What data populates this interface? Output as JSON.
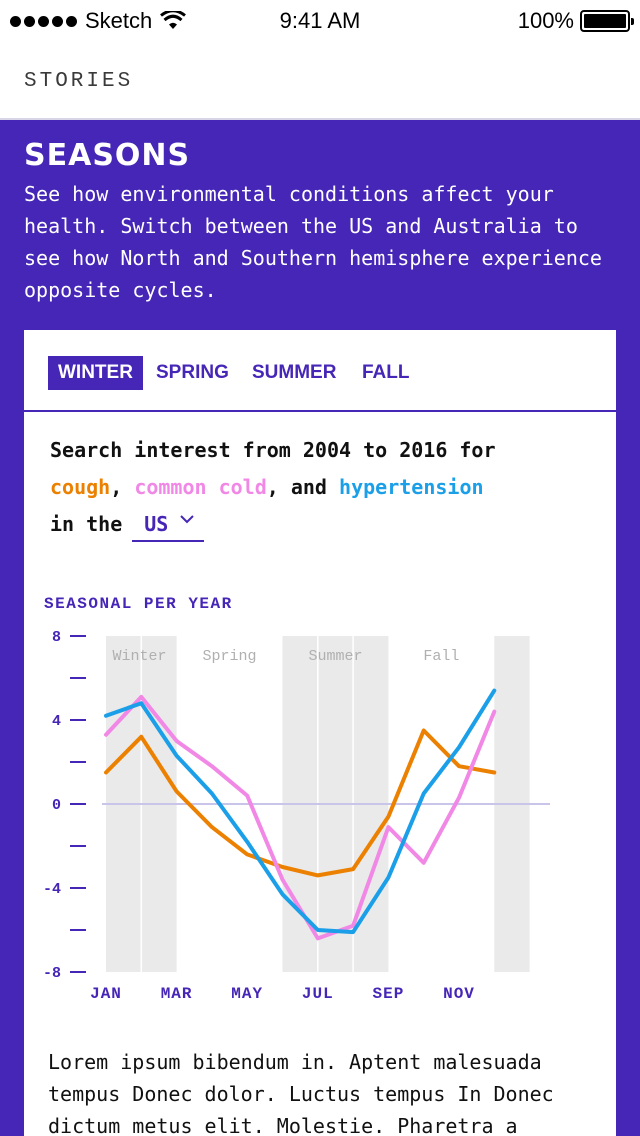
{
  "status_bar": {
    "carrier": "Sketch",
    "time": "9:41 AM",
    "battery": "100%",
    "battery_level": 1.0
  },
  "header": {
    "title": "STORIES"
  },
  "intro": {
    "title": "SEASONS",
    "text": "See how environmental conditions affect your health. Switch between the US and Australia to see how North and Southern hemisphere experience opposite cycles."
  },
  "tabs": [
    {
      "label": "WINTER",
      "active": true
    },
    {
      "label": "SPRING",
      "active": false
    },
    {
      "label": "SUMMER",
      "active": false
    },
    {
      "label": "FALL",
      "active": false
    }
  ],
  "query": {
    "prefix": "Search interest from 2004 to 2016 for",
    "term1": "cough",
    "sep1": ",",
    "term2": "common cold",
    "sep2": ", and",
    "term3": "hypertension",
    "in_the": "in the",
    "country": "US"
  },
  "colors": {
    "brand_purple": "#4626b6",
    "cough": "#ec8000",
    "common_cold": "#f188e6",
    "hypertension": "#1a9fe8",
    "season_band": "#eaeaea"
  },
  "chart_data": {
    "type": "line",
    "title": "SEASONAL PER YEAR",
    "ylim": [
      -8,
      8
    ],
    "y_ticks": [
      8,
      6,
      4,
      2,
      0,
      -2,
      -4,
      -6,
      -8
    ],
    "y_tick_labels": [
      "8",
      "",
      "4",
      "",
      "0",
      "",
      "-4",
      "",
      "-8"
    ],
    "x_labels": [
      "JAN",
      "MAR",
      "MAY",
      "JUL",
      "SEP",
      "NOV"
    ],
    "x_label_months": [
      0,
      2,
      4,
      6,
      8,
      10
    ],
    "season_labels": [
      "Winter",
      "Spring",
      "Summer",
      "Fall"
    ],
    "season_bands": [
      [
        0,
        2
      ],
      [
        5,
        8
      ],
      [
        11,
        12
      ]
    ],
    "x": [
      0,
      1,
      2,
      3,
      4,
      5,
      6,
      7,
      8,
      9,
      10,
      11,
      12
    ],
    "series": [
      {
        "name": "cough",
        "color": "#ec8000",
        "values": [
          1.5,
          3.2,
          0.6,
          -1.1,
          -2.4,
          -3.0,
          -3.4,
          -3.1,
          -0.6,
          3.5,
          1.8,
          1.5,
          null
        ]
      },
      {
        "name": "common cold",
        "color": "#f188e6",
        "values": [
          3.3,
          5.1,
          3.0,
          1.8,
          0.4,
          -3.6,
          -6.4,
          -5.8,
          -1.1,
          -2.8,
          0.3,
          4.4,
          null
        ]
      },
      {
        "name": "hypertension",
        "color": "#1a9fe8",
        "values": [
          4.2,
          4.8,
          2.3,
          0.5,
          -1.8,
          -4.3,
          -6.0,
          -6.1,
          -3.5,
          0.5,
          2.7,
          5.4,
          null
        ]
      }
    ]
  },
  "body_text": "Lorem ipsum bibendum in. Aptent malesuada tempus Donec dolor. Luctus tempus In Donec dictum metus elit. Molestie. Pharetra a"
}
